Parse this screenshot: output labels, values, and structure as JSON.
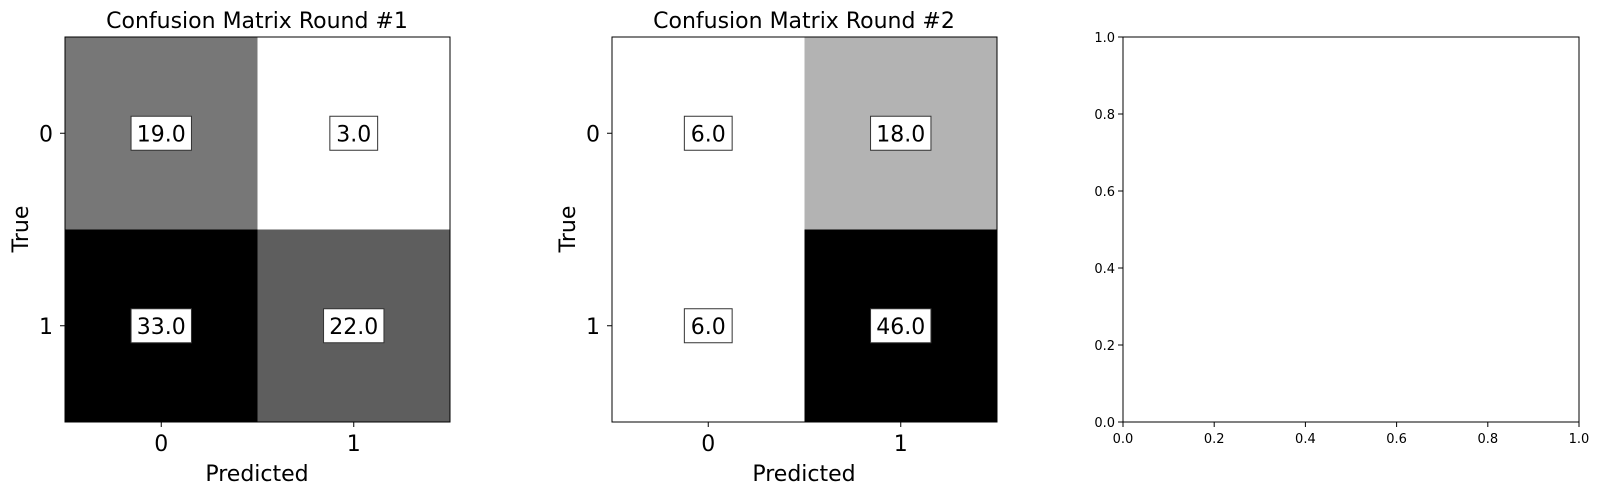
{
  "chart_data": [
    {
      "type": "heatmap",
      "title": "Confusion Matrix Round #1",
      "xlabel": "Predicted",
      "ylabel": "True",
      "x_ticks": [
        "0",
        "1"
      ],
      "y_ticks": [
        "0",
        "1"
      ],
      "values": [
        [
          19.0,
          3.0
        ],
        [
          33.0,
          22.0
        ]
      ],
      "value_labels": [
        [
          "19.0",
          "3.0"
        ],
        [
          "33.0",
          "22.0"
        ]
      ],
      "colormap": "grayscale-reversed",
      "grid": false
    },
    {
      "type": "heatmap",
      "title": "Confusion Matrix Round #2",
      "xlabel": "Predicted",
      "ylabel": "True",
      "x_ticks": [
        "0",
        "1"
      ],
      "y_ticks": [
        "0",
        "1"
      ],
      "values": [
        [
          6.0,
          18.0
        ],
        [
          6.0,
          46.0
        ]
      ],
      "value_labels": [
        [
          "6.0",
          "18.0"
        ],
        [
          "6.0",
          "46.0"
        ]
      ],
      "colormap": "grayscale-reversed",
      "grid": false
    },
    {
      "type": "scatter",
      "title": "",
      "xlabel": "",
      "ylabel": "",
      "xlim": [
        0.0,
        1.0
      ],
      "ylim": [
        0.0,
        1.0
      ],
      "x_ticks": [
        "0.0",
        "0.2",
        "0.4",
        "0.6",
        "0.8",
        "1.0"
      ],
      "y_ticks": [
        "0.0",
        "0.2",
        "0.4",
        "0.6",
        "0.8",
        "1.0"
      ],
      "series": [],
      "grid": false
    }
  ]
}
